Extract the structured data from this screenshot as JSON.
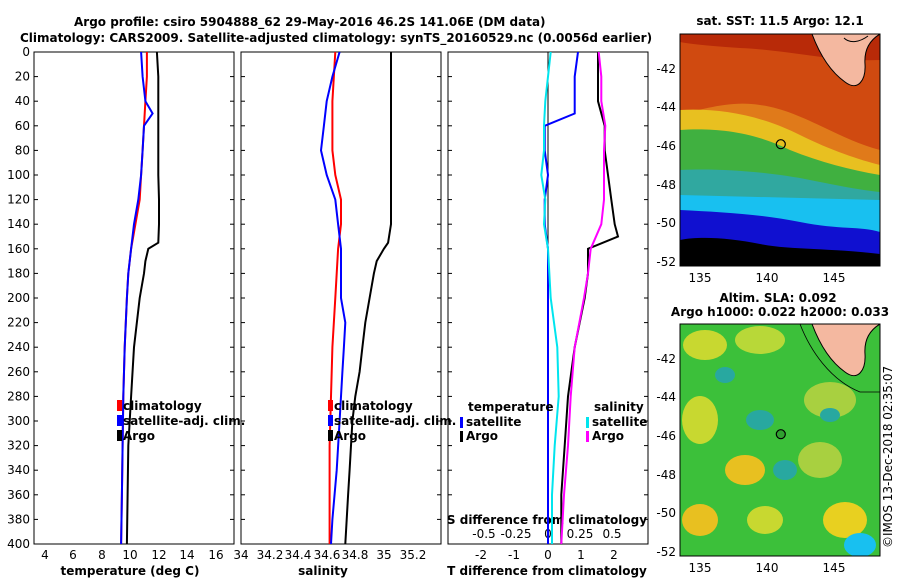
{
  "header": {
    "line1": "Argo profile: csiro 5904888_62 29-May-2016 46.2S 141.06E (DM data)",
    "line2": "Climatology: CARS2009. Satellite-adjusted climatology: synTS_20160529.nc (0.0056d earlier)"
  },
  "colors": {
    "climatology": "#ff0000",
    "satellite": "#0000ff",
    "argo": "#000000",
    "sat_t": "#00e5ee",
    "sat_s": "#00e5ee",
    "argo_s": "#ff00ff"
  },
  "chart_data": [
    {
      "type": "line",
      "id": "temperature",
      "xlabel": "temperature (deg C)",
      "ylabel": "",
      "xlim": [
        3,
        17
      ],
      "ylim": [
        400,
        0
      ],
      "xticks": [
        "4",
        "6",
        "8",
        "10",
        "12",
        "14",
        "16"
      ],
      "yticks": [
        "0",
        "20",
        "40",
        "60",
        "80",
        "100",
        "120",
        "140",
        "160",
        "180",
        "200",
        "220",
        "240",
        "260",
        "280",
        "300",
        "320",
        "340",
        "360",
        "380",
        "400"
      ],
      "legend": [
        "climatology",
        "satellite-adj. clim.",
        "Argo"
      ],
      "series": [
        {
          "name": "climatology",
          "depth": [
            0,
            20,
            40,
            60,
            80,
            100,
            120,
            140,
            160,
            180,
            200,
            240,
            280,
            320,
            360,
            400
          ],
          "values": [
            10.9,
            10.9,
            10.8,
            10.7,
            10.6,
            10.5,
            10.4,
            10.1,
            9.8,
            9.6,
            9.5,
            9.35,
            9.25,
            9.2,
            9.15,
            9.1
          ]
        },
        {
          "name": "satellite-adj. clim.",
          "depth": [
            0,
            20,
            40,
            50,
            60,
            80,
            100,
            120,
            140,
            160,
            180,
            200,
            240,
            280,
            320,
            360,
            400
          ],
          "values": [
            10.5,
            10.6,
            10.8,
            11.3,
            10.7,
            10.6,
            10.5,
            10.3,
            10.0,
            9.8,
            9.6,
            9.5,
            9.35,
            9.25,
            9.2,
            9.15,
            9.1
          ]
        },
        {
          "name": "Argo",
          "depth": [
            0,
            20,
            40,
            60,
            80,
            100,
            120,
            140,
            155,
            160,
            170,
            180,
            200,
            240,
            280,
            320,
            360,
            400
          ],
          "values": [
            11.6,
            11.7,
            11.7,
            11.7,
            11.7,
            11.7,
            11.75,
            11.75,
            11.7,
            11.0,
            10.8,
            10.7,
            10.4,
            10.0,
            9.8,
            9.6,
            9.55,
            9.5
          ]
        }
      ]
    },
    {
      "type": "line",
      "id": "salinity",
      "xlabel": "salinity",
      "xlim": [
        34.0,
        35.4
      ],
      "ylim": [
        400,
        0
      ],
      "xticks": [
        "34",
        "34.2",
        "34.4",
        "34.6",
        "34.8",
        "35",
        "35.2"
      ],
      "legend": [
        "climatology",
        "satellite-adj. clim.",
        "Argo"
      ],
      "series": [
        {
          "name": "climatology",
          "depth": [
            0,
            40,
            80,
            100,
            120,
            140,
            160,
            200,
            240,
            280,
            320,
            360,
            400
          ],
          "values": [
            34.66,
            34.64,
            34.64,
            34.66,
            34.7,
            34.7,
            34.68,
            34.66,
            34.64,
            34.63,
            34.62,
            34.62,
            34.62
          ]
        },
        {
          "name": "satellite-adj. clim.",
          "depth": [
            0,
            20,
            40,
            60,
            80,
            100,
            120,
            140,
            160,
            200,
            220,
            240,
            260,
            300,
            340,
            380,
            400
          ],
          "values": [
            34.69,
            34.64,
            34.6,
            34.58,
            34.56,
            34.6,
            34.66,
            34.68,
            34.7,
            34.7,
            34.73,
            34.72,
            34.71,
            34.69,
            34.67,
            34.64,
            34.63
          ]
        },
        {
          "name": "Argo",
          "depth": [
            0,
            20,
            140,
            155,
            160,
            170,
            180,
            200,
            220,
            240,
            260,
            280,
            300,
            320,
            340,
            360,
            380,
            400
          ],
          "values": [
            35.05,
            35.05,
            35.05,
            35.03,
            35.0,
            34.95,
            34.93,
            34.9,
            34.87,
            34.85,
            34.83,
            34.8,
            34.78,
            34.77,
            34.76,
            34.75,
            34.74,
            34.73
          ]
        }
      ]
    },
    {
      "type": "line",
      "id": "differences",
      "xlabel": "T difference from climatology",
      "xlabel2": "S difference from climatology",
      "xlim": [
        -3,
        3
      ],
      "ylim": [
        400,
        0
      ],
      "xticks": [
        "-2",
        "-1",
        "0",
        "1",
        "2"
      ],
      "xticks2": [
        "-0.5",
        "-0.25",
        "0",
        "0.25",
        "0.5"
      ],
      "legend_temperature": {
        "title": "temperature",
        "items": [
          "satellite",
          "Argo"
        ]
      },
      "legend_salinity": {
        "title": "salinity",
        "items": [
          "satellite",
          "Argo"
        ]
      },
      "series": [
        {
          "name": "T satellite",
          "depth": [
            0,
            20,
            40,
            50,
            60,
            80,
            100,
            120,
            140,
            160,
            200,
            260,
            300,
            400
          ],
          "values": [
            0.9,
            0.8,
            0.8,
            0.8,
            -0.1,
            -0.1,
            0.0,
            -0.1,
            -0.1,
            0.0,
            0.0,
            0.0,
            0.0,
            0.0
          ]
        },
        {
          "name": "T Argo",
          "depth": [
            0,
            20,
            40,
            60,
            80,
            100,
            120,
            140,
            150,
            160,
            180,
            200,
            240,
            280,
            320,
            360,
            400
          ],
          "values": [
            1.5,
            1.5,
            1.5,
            1.7,
            1.7,
            1.8,
            1.9,
            2.0,
            2.1,
            1.2,
            1.2,
            1.1,
            0.8,
            0.6,
            0.5,
            0.4,
            0.4
          ]
        },
        {
          "name": "S satellite",
          "depth": [
            0,
            20,
            40,
            60,
            80,
            100,
            120,
            140,
            160,
            200,
            240,
            280,
            320,
            360,
            400
          ],
          "values": [
            0.02,
            0.0,
            -0.02,
            -0.03,
            -0.03,
            -0.05,
            -0.02,
            -0.03,
            0.0,
            0.02,
            0.07,
            0.08,
            0.05,
            0.03,
            0.03
          ],
          "scale": "salinity"
        },
        {
          "name": "S Argo",
          "depth": [
            0,
            20,
            40,
            60,
            80,
            100,
            120,
            140,
            160,
            180,
            200,
            240,
            280,
            320,
            360,
            400
          ],
          "values": [
            0.38,
            0.4,
            0.4,
            0.43,
            0.42,
            0.42,
            0.42,
            0.4,
            0.32,
            0.3,
            0.27,
            0.2,
            0.17,
            0.15,
            0.12,
            0.1
          ],
          "scale": "salinity"
        }
      ]
    },
    {
      "type": "heatmap",
      "id": "sst-map",
      "title": "sat. SST: 11.5 Argo: 12.1",
      "xticks": [
        "135",
        "140",
        "145"
      ],
      "yticks": [
        "-42",
        "-44",
        "-46",
        "-48",
        "-50",
        "-52"
      ],
      "xlim": [
        133.5,
        148.5
      ],
      "ylim": [
        -52.5,
        -40.5
      ],
      "marker": {
        "lon": 141.06,
        "lat": -46.2
      }
    },
    {
      "type": "heatmap",
      "id": "sla-map",
      "title": "Altim. SLA: 0.092",
      "subtitle": "Argo h1000: 0.022 h2000: 0.033",
      "xticks": [
        "135",
        "140",
        "145"
      ],
      "yticks": [
        "-42",
        "-44",
        "-46",
        "-48",
        "-50",
        "-52"
      ],
      "xlim": [
        133.5,
        148.5
      ],
      "ylim": [
        -52.5,
        -40.5
      ],
      "marker": {
        "lon": 141.06,
        "lat": -46.2
      }
    }
  ],
  "watermark": "©IMOS 13-Dec-2018 02:35:07"
}
